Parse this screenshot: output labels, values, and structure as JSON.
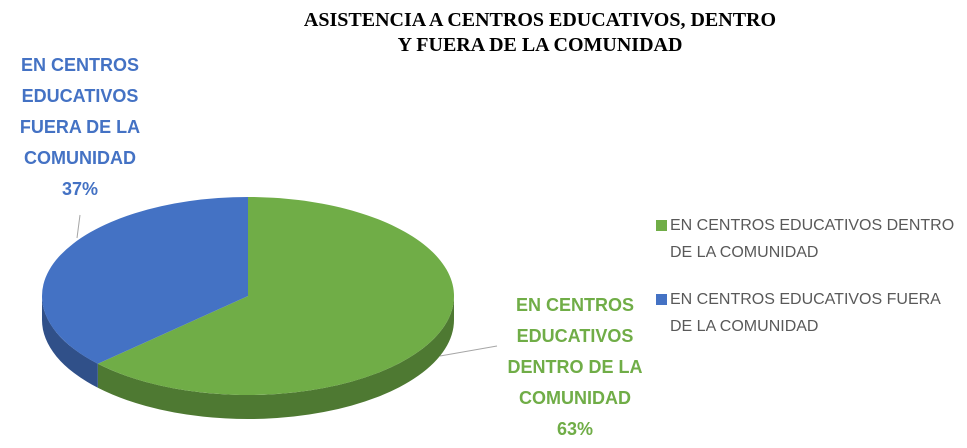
{
  "chart_data": {
    "type": "pie",
    "title": "ASISTENCIA A CENTROS EDUCATIVOS, DENTRO Y FUERA DE LA COMUNIDAD",
    "categories": [
      "EN CENTROS EDUCATIVOS DENTRO DE LA COMUNIDAD",
      "EN CENTROS EDUCATIVOS FUERA DE LA COMUNIDAD"
    ],
    "values": [
      63,
      37
    ],
    "value_labels": [
      "63%",
      "37%"
    ],
    "colors": [
      "#70ad47",
      "#4472c4"
    ],
    "legend": "right"
  }
}
